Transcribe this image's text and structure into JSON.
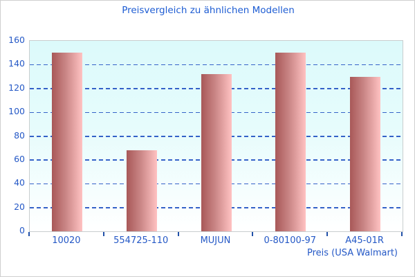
{
  "chart_data": {
    "type": "bar",
    "title": "Preisvergleich zu ähnlichen Modellen",
    "categories": [
      "10020",
      "554725-110",
      "MUJUN",
      "0-80100-97",
      "A45-01R"
    ],
    "values": [
      150,
      68,
      132,
      150,
      130
    ],
    "xlabel": "Preis (USA Walmart)",
    "ylabel": "",
    "ylim": [
      0,
      160
    ],
    "yticks": [
      0,
      20,
      40,
      60,
      80,
      100,
      120,
      140,
      160
    ],
    "grid": "horizontal-dashed",
    "legend_position": "none",
    "colors": {
      "title_text": "#1d5cd3",
      "tick_text": "#2458c6",
      "gridline": "#3461c8",
      "axis_tick": "#2050a8",
      "bar_gradient_left": "#a85858",
      "bar_gradient_right": "#ffc2c2",
      "plot_bg_top": "#dcfafb",
      "plot_bg_bottom": "#ffffff",
      "plot_border": "#c9cdce",
      "page_border": "#cfcfcf"
    }
  }
}
